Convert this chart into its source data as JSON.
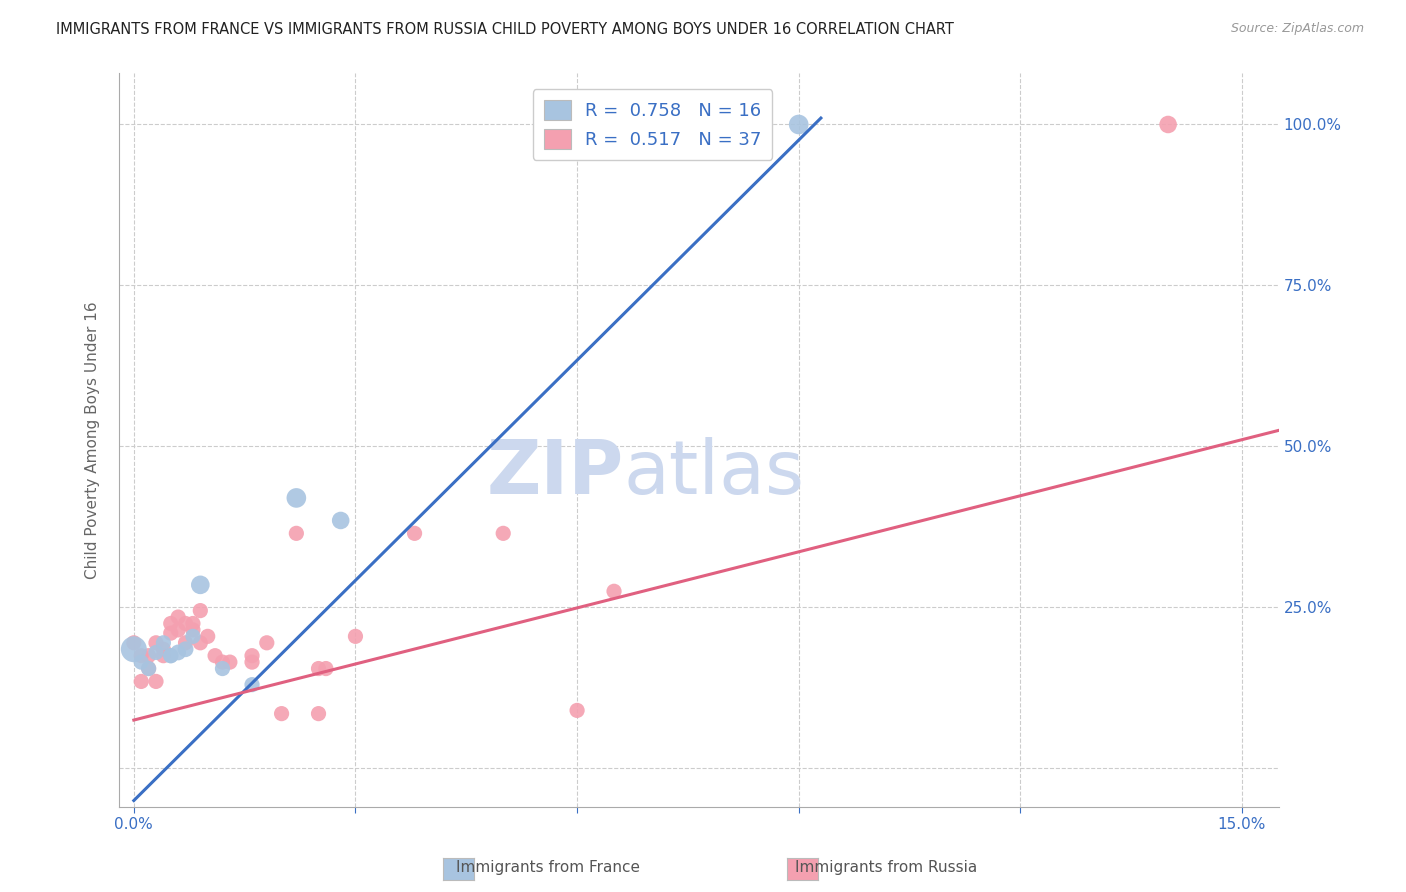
{
  "title": "IMMIGRANTS FROM FRANCE VS IMMIGRANTS FROM RUSSIA CHILD POVERTY AMONG BOYS UNDER 16 CORRELATION CHART",
  "source": "Source: ZipAtlas.com",
  "ylabel": "Child Poverty Among Boys Under 16",
  "y_ticks": [
    0.0,
    0.25,
    0.5,
    0.75,
    1.0
  ],
  "y_tick_labels": [
    "",
    "25.0%",
    "50.0%",
    "75.0%",
    "100.0%"
  ],
  "x_ticks": [
    0.0,
    0.03,
    0.06,
    0.09,
    0.12,
    0.15
  ],
  "x_tick_labels": [
    "0.0%",
    "",
    "",
    "",
    "",
    "15.0%"
  ],
  "france_R": 0.758,
  "france_N": 16,
  "russia_R": 0.517,
  "russia_N": 37,
  "france_color": "#a8c4e0",
  "russia_color": "#f4a0b0",
  "france_line_color": "#3a6fc4",
  "russia_line_color": "#e06080",
  "watermark_zip": "ZIP",
  "watermark_atlas": "atlas",
  "watermark_color": "#ccd8ee",
  "france_points": [
    [
      0.0,
      0.185
    ],
    [
      0.001,
      0.165
    ],
    [
      0.002,
      0.155
    ],
    [
      0.003,
      0.18
    ],
    [
      0.004,
      0.195
    ],
    [
      0.005,
      0.175
    ],
    [
      0.005,
      0.175
    ],
    [
      0.006,
      0.18
    ],
    [
      0.007,
      0.185
    ],
    [
      0.008,
      0.205
    ],
    [
      0.009,
      0.285
    ],
    [
      0.012,
      0.155
    ],
    [
      0.016,
      0.13
    ],
    [
      0.022,
      0.42
    ],
    [
      0.028,
      0.385
    ],
    [
      0.09,
      1.0
    ]
  ],
  "france_sizes": [
    350,
    120,
    120,
    120,
    120,
    120,
    120,
    130,
    130,
    120,
    180,
    120,
    120,
    200,
    160,
    200
  ],
  "russia_points": [
    [
      0.0,
      0.195
    ],
    [
      0.001,
      0.175
    ],
    [
      0.001,
      0.135
    ],
    [
      0.002,
      0.175
    ],
    [
      0.002,
      0.155
    ],
    [
      0.003,
      0.135
    ],
    [
      0.003,
      0.195
    ],
    [
      0.004,
      0.185
    ],
    [
      0.004,
      0.175
    ],
    [
      0.005,
      0.21
    ],
    [
      0.005,
      0.225
    ],
    [
      0.006,
      0.235
    ],
    [
      0.006,
      0.215
    ],
    [
      0.007,
      0.225
    ],
    [
      0.007,
      0.195
    ],
    [
      0.008,
      0.225
    ],
    [
      0.008,
      0.215
    ],
    [
      0.009,
      0.245
    ],
    [
      0.009,
      0.195
    ],
    [
      0.01,
      0.205
    ],
    [
      0.011,
      0.175
    ],
    [
      0.012,
      0.165
    ],
    [
      0.013,
      0.165
    ],
    [
      0.016,
      0.175
    ],
    [
      0.016,
      0.165
    ],
    [
      0.018,
      0.195
    ],
    [
      0.02,
      0.085
    ],
    [
      0.022,
      0.365
    ],
    [
      0.025,
      0.085
    ],
    [
      0.025,
      0.155
    ],
    [
      0.026,
      0.155
    ],
    [
      0.03,
      0.205
    ],
    [
      0.038,
      0.365
    ],
    [
      0.05,
      0.365
    ],
    [
      0.06,
      0.09
    ],
    [
      0.065,
      0.275
    ],
    [
      0.14,
      1.0
    ]
  ],
  "russia_sizes": [
    120,
    120,
    120,
    120,
    120,
    120,
    120,
    120,
    120,
    120,
    120,
    120,
    120,
    120,
    120,
    120,
    120,
    120,
    120,
    120,
    120,
    120,
    120,
    120,
    120,
    120,
    120,
    120,
    120,
    120,
    120,
    120,
    120,
    120,
    120,
    120,
    160
  ],
  "xlim": [
    -0.002,
    0.155
  ],
  "ylim": [
    -0.06,
    1.08
  ],
  "france_line_x0": 0.0,
  "france_line_y0": -0.05,
  "france_line_x1": 0.093,
  "france_line_y1": 1.01,
  "russia_line_x0": 0.0,
  "russia_line_y0": 0.075,
  "russia_line_x1": 0.155,
  "russia_line_y1": 0.525,
  "background_color": "#ffffff",
  "grid_color": "#cccccc"
}
